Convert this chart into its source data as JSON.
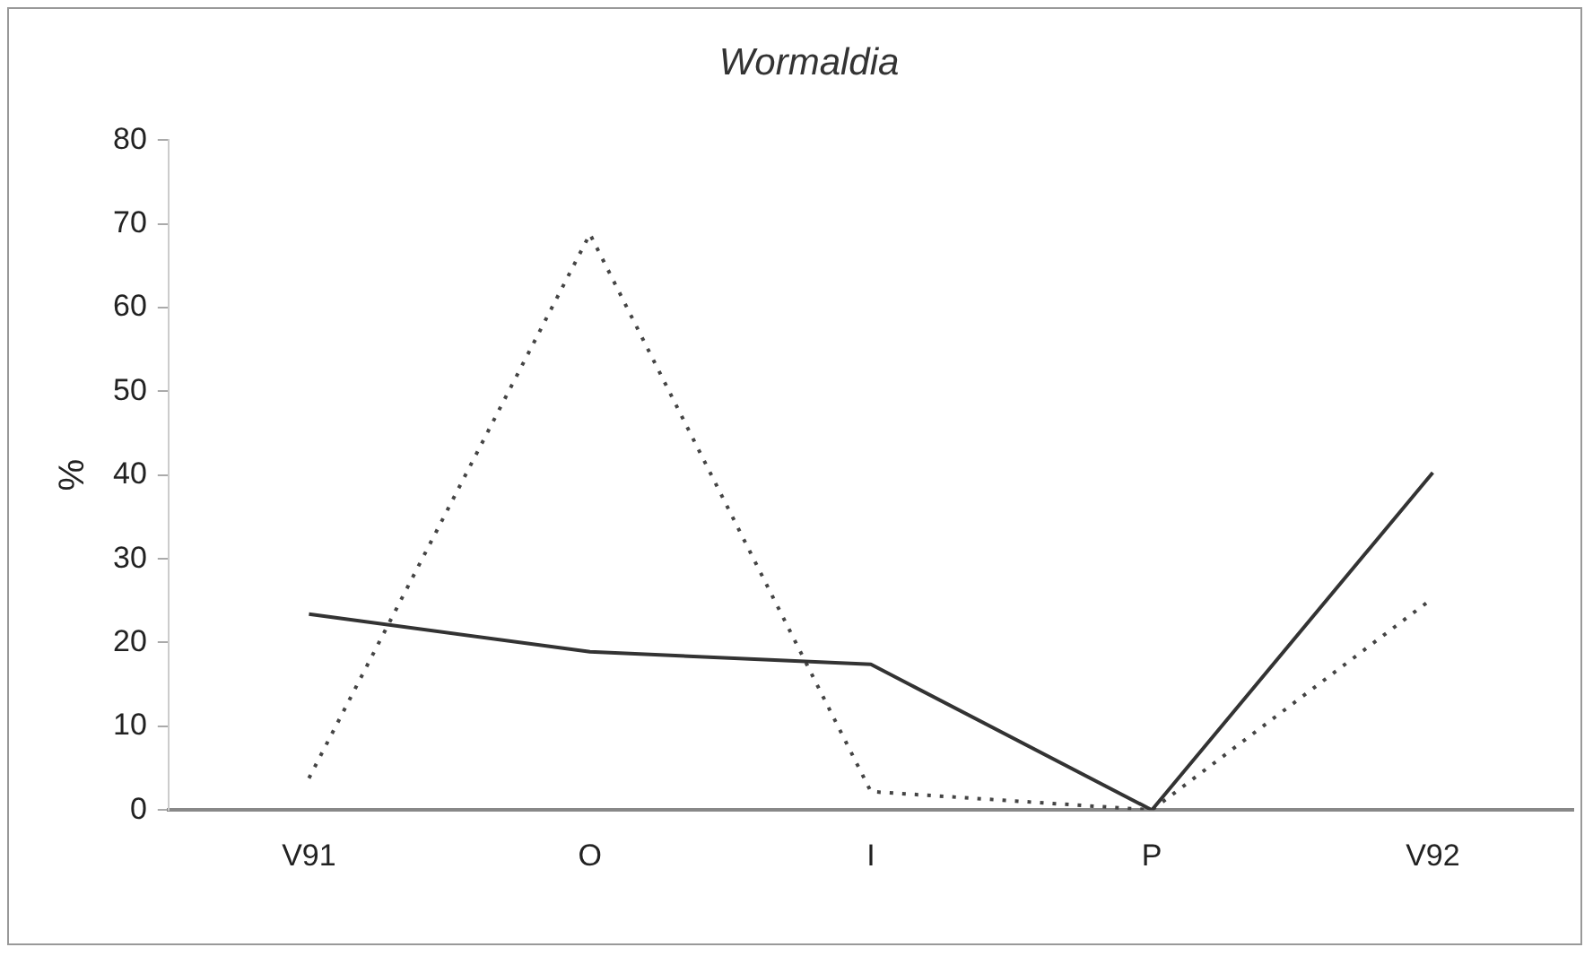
{
  "chart_data": {
    "type": "line",
    "title": "Wormaldia",
    "ylabel": "%",
    "categories": [
      "V91",
      "O",
      "I",
      "P",
      "V92"
    ],
    "series": [
      {
        "color": "#333333",
        "line_style": "solid",
        "values": [
          23.4,
          18.9,
          17.4,
          0,
          40.3
        ]
      },
      {
        "color": "#444444",
        "line_style": "dotted",
        "values": [
          3.8,
          68.8,
          2.2,
          0,
          25.3
        ]
      }
    ],
    "ylim": [
      0,
      80
    ],
    "yticks": [
      0,
      10,
      20,
      30,
      40,
      50,
      60,
      70,
      80
    ],
    "grid": false,
    "legend": false,
    "marker": "none"
  }
}
